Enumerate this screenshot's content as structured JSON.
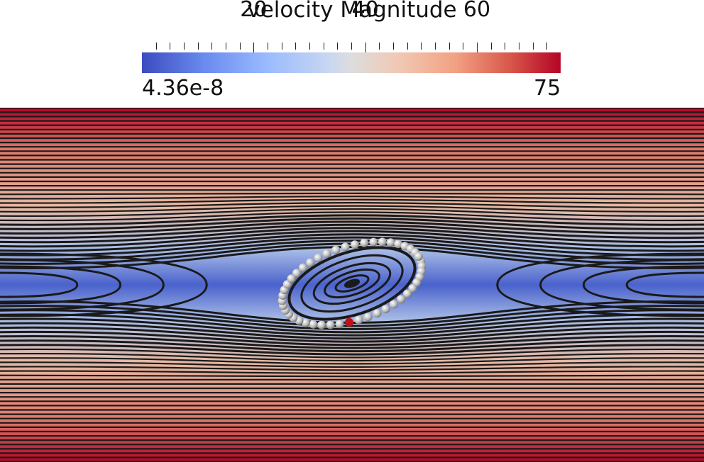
{
  "legend": {
    "title": "velocity Magnitude",
    "min_label": "4.36e-8",
    "max_label": "75",
    "major_ticks": [
      "20",
      "40",
      "60"
    ],
    "min_value": 4.36e-08,
    "max_value": 75,
    "colormap": [
      "#3b4cc0",
      "#9abbff",
      "#dddddd",
      "#f2a083",
      "#b40426"
    ]
  },
  "scene": {
    "streamline_color": "#1a1a1a",
    "particle_color": "#c8c8c8",
    "highlight_particle_color": "#c0101a",
    "particle_count": 46
  }
}
